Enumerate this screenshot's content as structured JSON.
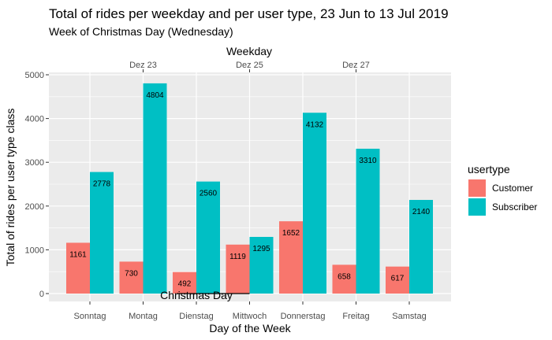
{
  "chart_data": {
    "type": "bar",
    "title": "Total of rides per weekday and per user type, 23 Jun to 13 Jul 2019",
    "subtitle": "Week of Christmas Day (Wednesday)",
    "xlabel": "Day of the Week",
    "ylabel": "Total of rides per user type class",
    "top_axis_label": "Weekday",
    "top_ticks": [
      {
        "label": "Dez 23",
        "category": "Montag"
      },
      {
        "label": "Dez 25",
        "category": "Mittwoch"
      },
      {
        "label": "Dez 27",
        "category": "Freitag"
      }
    ],
    "categories": [
      "Sonntag",
      "Montag",
      "Dienstag",
      "Mittwoch",
      "Donnerstag",
      "Freitag",
      "Samstag"
    ],
    "series": [
      {
        "name": "Customer",
        "color": "#F8766D",
        "values": [
          1161,
          730,
          492,
          1119,
          1652,
          658,
          617
        ]
      },
      {
        "name": "Subscriber",
        "color": "#00BFC4",
        "values": [
          2778,
          4804,
          2560,
          1295,
          4132,
          3310,
          2140
        ]
      }
    ],
    "ylim": [
      0,
      5000
    ],
    "yticks": [
      0,
      1000,
      2000,
      3000,
      4000,
      5000
    ],
    "legend": {
      "title": "usertype",
      "position": "right"
    },
    "annotation": {
      "text": "Christmas Day"
    },
    "grid": true,
    "panel_background": "#EBEBEB"
  }
}
